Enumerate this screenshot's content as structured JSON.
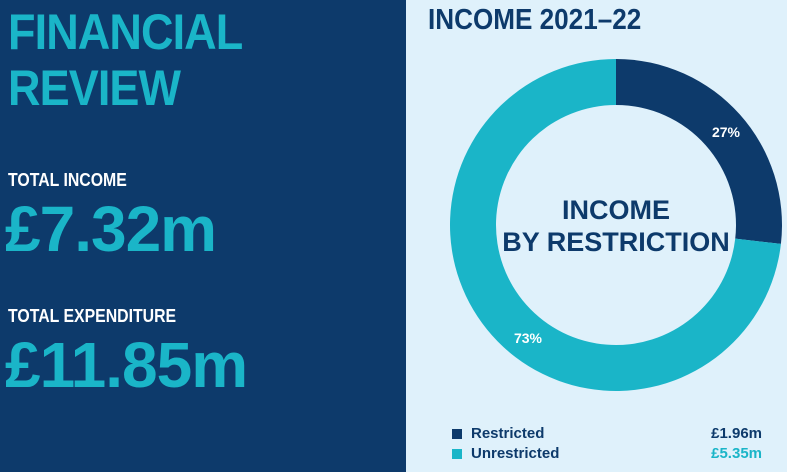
{
  "left_panel": {
    "heading_line1": "FINANCIAL",
    "heading_line2": "REVIEW",
    "total_income_label": "TOTAL INCOME",
    "total_income_value": "£7.32m",
    "total_expenditure_label": "TOTAL EXPENDITURE",
    "total_expenditure_value": "£11.85m"
  },
  "colors": {
    "navy": "#0d3a6b",
    "teal": "#1ab5c8",
    "light_bg": "#dff1fb"
  },
  "chart_data": {
    "type": "pie",
    "title": "INCOME 2021–22",
    "center_label": [
      "INCOME",
      "BY RESTRICTION"
    ],
    "legend_placement": "bottom",
    "slices": [
      {
        "label": "Restricted",
        "value": 1.96,
        "display_value": "£1.96m",
        "percent": 27,
        "percent_label": "27%",
        "color": "#0d3a6b"
      },
      {
        "label": "Unrestricted",
        "value": 5.35,
        "display_value": "£5.35m",
        "percent": 73,
        "percent_label": "73%",
        "color": "#1ab5c8"
      }
    ]
  }
}
